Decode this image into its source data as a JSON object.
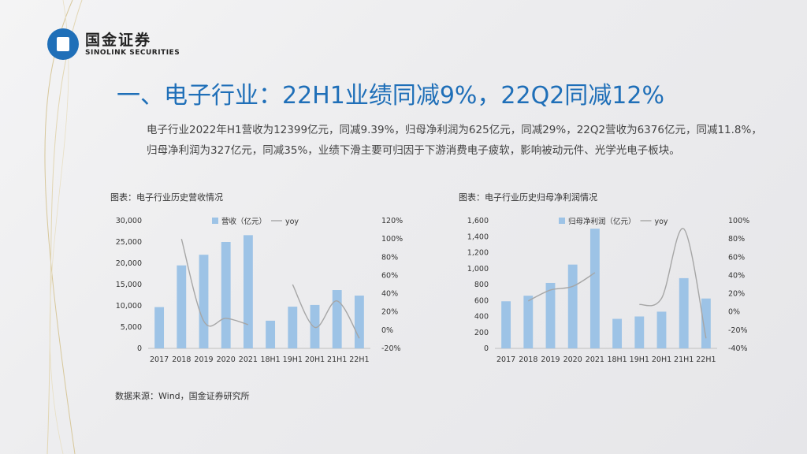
{
  "brand": {
    "cn": "国金证券",
    "en": "SINOLINK SECURITIES"
  },
  "title": "一、电子行业：22H1业绩同减9%，22Q2同减12%",
  "summary": "电子行业2022年H1营收为12399亿元，同减9.39%，归母净利润为625亿元，同减29%，22Q2营收为6376亿元，同减11.8%，归母净利润为327亿元，同减35%，业绩下滑主要可归因于下游消费电子疲软，影响被动元件、光学光电子板块。",
  "source": "数据来源：Wind，国金证券研究所",
  "colors": {
    "bar": "#9dc3e6",
    "line": "#a6a6a6",
    "title": "#1f6fb8"
  },
  "chart_data": [
    {
      "type": "bar",
      "caption": "图表：电子行业历史营收情况",
      "categories": [
        "2017",
        "2018",
        "2019",
        "2020",
        "2021",
        "18H1",
        "19H1",
        "20H1",
        "21H1",
        "22H1"
      ],
      "series": [
        {
          "name": "营收（亿元）",
          "type": "bar",
          "axis": "left",
          "values": [
            9700,
            19500,
            22000,
            25000,
            26600,
            6500,
            9800,
            10200,
            13700,
            12400
          ]
        },
        {
          "name": "yoy",
          "type": "line",
          "axis": "right",
          "values": [
            null,
            100,
            10,
            13,
            6,
            null,
            50,
            3,
            32,
            -9
          ]
        }
      ],
      "y_left": {
        "min": 0,
        "max": 30000,
        "step": 5000,
        "ticks": [
          "0",
          "5,000",
          "10,000",
          "15,000",
          "20,000",
          "25,000",
          "30,000"
        ]
      },
      "y_right": {
        "min": -20,
        "max": 120,
        "step": 20,
        "ticks": [
          "-20%",
          "0%",
          "20%",
          "40%",
          "60%",
          "80%",
          "100%",
          "120%"
        ]
      },
      "legend": "top"
    },
    {
      "type": "bar",
      "caption": "图表：电子行业历史归母净利润情况",
      "categories": [
        "2017",
        "2018",
        "2019",
        "2020",
        "2021",
        "18H1",
        "19H1",
        "20H1",
        "21H1",
        "22H1"
      ],
      "series": [
        {
          "name": "归母净利润（亿元）",
          "type": "bar",
          "axis": "left",
          "values": [
            590,
            660,
            820,
            1050,
            1500,
            370,
            400,
            460,
            880,
            625
          ]
        },
        {
          "name": "yoy",
          "type": "line",
          "axis": "right",
          "values": [
            null,
            12,
            24,
            28,
            43,
            null,
            8,
            15,
            91,
            -29
          ]
        }
      ],
      "y_left": {
        "min": 0,
        "max": 1600,
        "step": 200,
        "ticks": [
          "0",
          "200",
          "400",
          "600",
          "800",
          "1,000",
          "1,200",
          "1,400",
          "1,600"
        ]
      },
      "y_right": {
        "min": -40,
        "max": 100,
        "step": 20,
        "ticks": [
          "-40%",
          "-20%",
          "0%",
          "20%",
          "40%",
          "60%",
          "80%",
          "100%"
        ]
      },
      "legend": "top"
    }
  ]
}
